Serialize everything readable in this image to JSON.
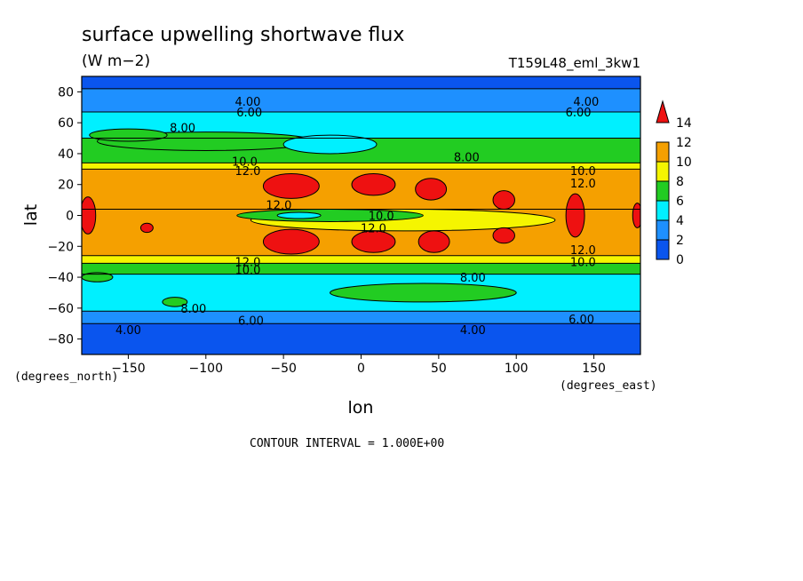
{
  "chart_data": {
    "type": "heatmap",
    "title": "surface upwelling shortwave flux",
    "units": "(W m−2)",
    "run_label": "T159L48_eml_3kw1",
    "xlabel": "lon",
    "ylabel": "lat",
    "x_units": "(degrees_east)",
    "y_units": "(degrees_north)",
    "xlim": [
      -180,
      180
    ],
    "ylim": [
      -90,
      90
    ],
    "x_ticks": [
      -150,
      -100,
      -50,
      0,
      50,
      100,
      150
    ],
    "y_ticks": [
      80,
      60,
      40,
      20,
      0,
      -20,
      -40,
      -60,
      -80
    ],
    "contour_interval_text": "CONTOUR INTERVAL = 1.000E+00",
    "colorbar": {
      "levels": [
        0,
        2,
        4,
        6,
        8,
        10,
        12,
        14
      ],
      "tick_labels": [
        "14",
        "12",
        "10",
        "8",
        "6",
        "4",
        "2",
        "0"
      ],
      "colors": [
        "#0a55ee",
        "#1e90ff",
        "#00f0ff",
        "#22cc22",
        "#f5f500",
        "#f5a000",
        "#ee1111"
      ]
    },
    "zonal_bands": [
      {
        "lat": [
          82,
          90
        ],
        "color": "#0a55ee"
      },
      {
        "lat": [
          67,
          82
        ],
        "color": "#1e90ff"
      },
      {
        "lat": [
          50,
          67
        ],
        "color": "#00f0ff"
      },
      {
        "lat": [
          34,
          50
        ],
        "color": "#22cc22"
      },
      {
        "lat": [
          30,
          34
        ],
        "color": "#f5f500"
      },
      {
        "lat": [
          4,
          30
        ],
        "color": "#f5a000"
      },
      {
        "lat": [
          -26,
          4
        ],
        "color": "#f5a000"
      },
      {
        "lat": [
          -31,
          -26
        ],
        "color": "#f5f500"
      },
      {
        "lat": [
          -38,
          -31
        ],
        "color": "#22cc22"
      },
      {
        "lat": [
          -62,
          -38
        ],
        "color": "#00f0ff"
      },
      {
        "lat": [
          -70,
          -62
        ],
        "color": "#1e90ff"
      },
      {
        "lat": [
          -90,
          -70
        ],
        "color": "#0a55ee"
      }
    ],
    "blobs": [
      {
        "lon": 27,
        "lat": -3,
        "rx": 98,
        "ry": 7,
        "color": "#f5f500"
      },
      {
        "lon": -20,
        "lat": 0,
        "rx": 60,
        "ry": 4,
        "color": "#22cc22"
      },
      {
        "lon": -40,
        "lat": 0,
        "rx": 14,
        "ry": 2,
        "color": "#00f0ff"
      },
      {
        "lon": -45,
        "lat": 19,
        "rx": 18,
        "ry": 8,
        "color": "#ee1111"
      },
      {
        "lon": -45,
        "lat": -17,
        "rx": 18,
        "ry": 8,
        "color": "#ee1111"
      },
      {
        "lon": 8,
        "lat": 20,
        "rx": 14,
        "ry": 7,
        "color": "#ee1111"
      },
      {
        "lon": 8,
        "lat": -17,
        "rx": 14,
        "ry": 7,
        "color": "#ee1111"
      },
      {
        "lon": 45,
        "lat": 17,
        "rx": 10,
        "ry": 7,
        "color": "#ee1111"
      },
      {
        "lon": 47,
        "lat": -17,
        "rx": 10,
        "ry": 7,
        "color": "#ee1111"
      },
      {
        "lon": 92,
        "lat": 10,
        "rx": 7,
        "ry": 6,
        "color": "#ee1111"
      },
      {
        "lon": 92,
        "lat": -13,
        "rx": 7,
        "ry": 5,
        "color": "#ee1111"
      },
      {
        "lon": 138,
        "lat": 0,
        "rx": 6,
        "ry": 14,
        "color": "#ee1111"
      },
      {
        "lon": -176,
        "lat": 0,
        "rx": 5,
        "ry": 12,
        "color": "#ee1111"
      },
      {
        "lon": 178,
        "lat": 0,
        "rx": 3,
        "ry": 8,
        "color": "#ee1111"
      },
      {
        "lon": -138,
        "lat": -8,
        "rx": 4,
        "ry": 3,
        "color": "#ee1111"
      },
      {
        "lon": -100,
        "lat": 48,
        "rx": 70,
        "ry": 6,
        "color": "#22cc22"
      },
      {
        "lon": -150,
        "lat": 52,
        "rx": 25,
        "ry": 4,
        "color": "#22cc22"
      },
      {
        "lon": -20,
        "lat": 46,
        "rx": 30,
        "ry": 6,
        "color": "#00f0ff"
      },
      {
        "lon": 40,
        "lat": -50,
        "rx": 60,
        "ry": 6,
        "color": "#22cc22"
      },
      {
        "lon": -170,
        "lat": -40,
        "rx": 10,
        "ry": 3,
        "color": "#22cc22"
      },
      {
        "lon": -120,
        "lat": -56,
        "rx": 8,
        "ry": 3,
        "color": "#22cc22"
      }
    ],
    "contour_labels": [
      {
        "text": "4.00",
        "lon": -73,
        "lat": 74
      },
      {
        "text": "6.00",
        "lon": -72,
        "lat": 67
      },
      {
        "text": "4.00",
        "lon": 145,
        "lat": 74
      },
      {
        "text": "6.00",
        "lon": 140,
        "lat": 67
      },
      {
        "text": "8.00",
        "lon": -115,
        "lat": 57
      },
      {
        "text": "8.00",
        "lon": 68,
        "lat": 38
      },
      {
        "text": "10.0",
        "lon": -75,
        "lat": 35
      },
      {
        "text": "12.0",
        "lon": -73,
        "lat": 29
      },
      {
        "text": "10.0",
        "lon": 143,
        "lat": 29
      },
      {
        "text": "12.0",
        "lon": 143,
        "lat": 21
      },
      {
        "text": "12.0",
        "lon": -53,
        "lat": 7
      },
      {
        "text": "10.0",
        "lon": 13,
        "lat": 0
      },
      {
        "text": "12.0",
        "lon": 8,
        "lat": -8
      },
      {
        "text": "12.0",
        "lon": 143,
        "lat": -22
      },
      {
        "text": "10.0",
        "lon": 143,
        "lat": -30
      },
      {
        "text": "12.0",
        "lon": -73,
        "lat": -30
      },
      {
        "text": "10.0",
        "lon": -73,
        "lat": -35
      },
      {
        "text": "8.00",
        "lon": 72,
        "lat": -40
      },
      {
        "text": "8.00",
        "lon": -108,
        "lat": -60
      },
      {
        "text": "6.00",
        "lon": -71,
        "lat": -68
      },
      {
        "text": "6.00",
        "lon": 142,
        "lat": -67
      },
      {
        "text": "4.00",
        "lon": -150,
        "lat": -74
      },
      {
        "text": "4.00",
        "lon": 72,
        "lat": -74
      }
    ]
  }
}
